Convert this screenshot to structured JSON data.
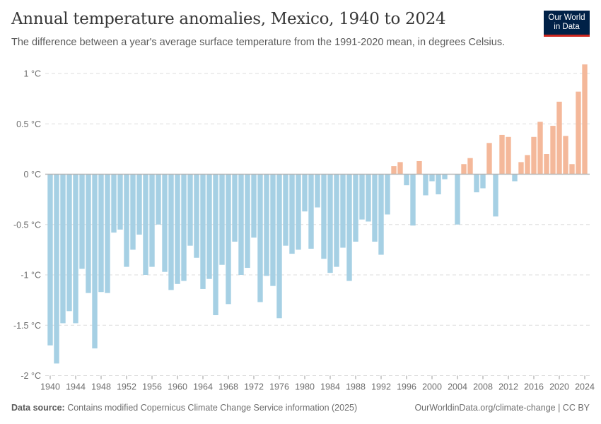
{
  "header": {
    "title": "Annual temperature anomalies, Mexico, 1940 to 2024",
    "subtitle": "The difference between a year's average surface temperature from the 1991-2020 mean, in degrees Celsius.",
    "logo_line1": "Our World",
    "logo_line2": "in Data"
  },
  "footer": {
    "source_label": "Data source:",
    "source_text": " Contains modified Copernicus Climate Change Service information (2025)",
    "link": "OurWorldinData.org/climate-change | CC BY"
  },
  "colors": {
    "positive": "#f4b89a",
    "negative": "#a6d0e4",
    "logo_bg": "#002147",
    "logo_accent": "#ce261e"
  },
  "chart_data": {
    "type": "bar",
    "title": "Annual temperature anomalies, Mexico, 1940 to 2024",
    "xlabel": "",
    "ylabel": "",
    "unit": "°C",
    "ylim": [
      -2,
      1
    ],
    "yticks": [
      1,
      0.5,
      0,
      -0.5,
      -1,
      -1.5,
      -2
    ],
    "ytick_labels": [
      "1 °C",
      "0.5 °C",
      "0 °C",
      "-0.5 °C",
      "-1 °C",
      "-1.5 °C",
      "-2 °C"
    ],
    "xticks": [
      1940,
      1944,
      1948,
      1952,
      1956,
      1960,
      1964,
      1968,
      1972,
      1976,
      1980,
      1984,
      1988,
      1992,
      1996,
      2000,
      2004,
      2008,
      2012,
      2016,
      2020,
      2024
    ],
    "grid": "horizontal dashed",
    "x": [
      1940,
      1941,
      1942,
      1943,
      1944,
      1945,
      1946,
      1947,
      1948,
      1949,
      1950,
      1951,
      1952,
      1953,
      1954,
      1955,
      1956,
      1957,
      1958,
      1959,
      1960,
      1961,
      1962,
      1963,
      1964,
      1965,
      1966,
      1967,
      1968,
      1969,
      1970,
      1971,
      1972,
      1973,
      1974,
      1975,
      1976,
      1977,
      1978,
      1979,
      1980,
      1981,
      1982,
      1983,
      1984,
      1985,
      1986,
      1987,
      1988,
      1989,
      1990,
      1991,
      1992,
      1993,
      1994,
      1995,
      1996,
      1997,
      1998,
      1999,
      2000,
      2001,
      2002,
      2003,
      2004,
      2005,
      2006,
      2007,
      2008,
      2009,
      2010,
      2011,
      2012,
      2013,
      2014,
      2015,
      2016,
      2017,
      2018,
      2019,
      2020,
      2021,
      2022,
      2023,
      2024
    ],
    "values": [
      -1.7,
      -1.88,
      -1.48,
      -1.36,
      -1.48,
      -0.94,
      -1.18,
      -1.73,
      -1.17,
      -1.18,
      -0.58,
      -0.55,
      -0.92,
      -0.75,
      -0.6,
      -1.0,
      -0.92,
      -0.5,
      -0.97,
      -1.15,
      -1.09,
      -1.06,
      -0.71,
      -0.83,
      -1.14,
      -1.04,
      -1.4,
      -0.9,
      -1.29,
      -0.67,
      -1.0,
      -0.93,
      -0.63,
      -1.27,
      -1.01,
      -1.11,
      -1.43,
      -0.71,
      -0.79,
      -0.75,
      -0.37,
      -0.74,
      -0.33,
      -0.84,
      -0.98,
      -0.92,
      -0.73,
      -1.06,
      -0.67,
      -0.45,
      -0.47,
      -0.67,
      -0.8,
      -0.4,
      0.08,
      0.12,
      -0.11,
      -0.51,
      0.13,
      -0.21,
      -0.07,
      -0.2,
      -0.05,
      0.0,
      -0.5,
      0.1,
      0.16,
      -0.18,
      -0.14,
      0.31,
      -0.42,
      0.39,
      0.37,
      -0.07,
      0.12,
      0.19,
      0.37,
      0.52,
      0.2,
      0.48,
      0.72,
      0.38,
      0.1,
      0.82,
      1.09
    ]
  }
}
